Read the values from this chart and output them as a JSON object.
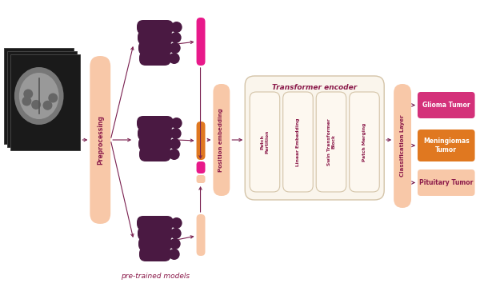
{
  "bg_color": "#ffffff",
  "peach_color": "#f8c8a8",
  "dark_purple": "#4a1942",
  "pink_bright": "#e8198a",
  "orange_bright": "#e07820",
  "arrow_color": "#7a2050",
  "transformer_box_color": "#faf5ec",
  "transformer_box_edge": "#d4c4a8",
  "glioma_color": "#d4317a",
  "meningioma_color": "#e07820",
  "pituitary_color": "#f8c8a8",
  "inner_block_color": "#fdf8f0",
  "inner_block_edge": "#d4c4a8",
  "title": "Transformer encoder",
  "pretrained_label": "pre-trained models",
  "preprocessing_label": "Preprocessing",
  "position_embedding_label": "Position embedding",
  "classification_label": "Classification Layer",
  "patch_partition_label": "Patch\nPartition",
  "linear_embedding_label": "Linear Embedding",
  "swin_transformer_label": "Swin Transformer\nBlock",
  "patch_merging_label": "Patch Merging",
  "glioma_label": "Glioma Tumor",
  "meningioma_label": "Meningiomas\nTumor",
  "pituitary_label": "Pituitary Tumor",
  "mri_bg": "#1a1a1a",
  "mri_brain_outer": "#888888",
  "mri_brain_inner": "#aaaaaa",
  "mri_detail": "#666666"
}
